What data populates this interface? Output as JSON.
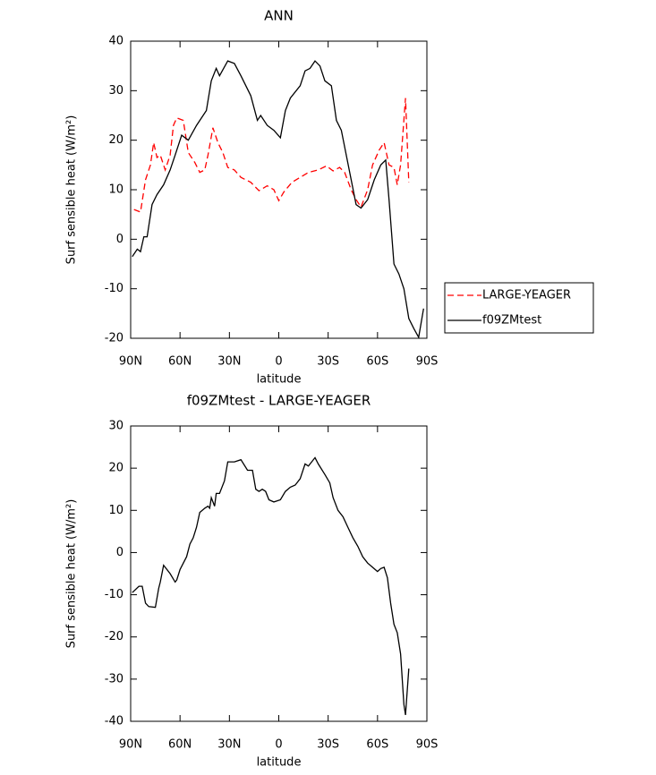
{
  "chart_data": [
    {
      "type": "line",
      "title": "ANN",
      "xlabel": "latitude",
      "ylabel": "Surf sensible heat (W/m²)",
      "xlim": [
        90,
        -90
      ],
      "ylim": [
        -20,
        40
      ],
      "xticks": [
        {
          "value": 90,
          "label": "90N"
        },
        {
          "value": 60,
          "label": "60N"
        },
        {
          "value": 30,
          "label": "30N"
        },
        0,
        {
          "value": -30,
          "label": "30S"
        },
        {
          "value": -60,
          "label": "60S"
        },
        {
          "value": -90,
          "label": "90S"
        }
      ],
      "yticks": [
        -20,
        -10,
        0,
        10,
        20,
        30,
        40
      ],
      "legend": "right",
      "series": [
        {
          "name": "LARGE-YEAGER",
          "color": "#ff0000",
          "linestyle": "dashed",
          "x": [
            88,
            84,
            81,
            78,
            76,
            74,
            72,
            69,
            66,
            64,
            62,
            58,
            55,
            51,
            48,
            45,
            43,
            40,
            37,
            34,
            31,
            27,
            23,
            17,
            12,
            7,
            3,
            0,
            -3,
            -8,
            -13,
            -18,
            -24,
            -29,
            -33,
            -37,
            -40,
            -44,
            -47,
            -50,
            -54,
            -57,
            -61,
            -64,
            -67,
            -70,
            -72,
            -74,
            -77,
            -79
          ],
          "values": [
            6,
            5.5,
            12,
            15,
            19.5,
            16.5,
            17,
            14,
            17,
            23,
            24.5,
            24,
            17.5,
            15.5,
            13.5,
            14,
            17,
            22.5,
            19.5,
            17.5,
            14.5,
            14,
            12.5,
            11.5,
            9.8,
            10.8,
            10,
            7.8,
            9.5,
            11.5,
            12.5,
            13.5,
            14,
            14.8,
            13.8,
            14.5,
            13.5,
            10,
            8,
            6.5,
            10,
            15,
            18,
            19.5,
            15,
            14.5,
            11,
            15,
            28.5,
            11.5
          ]
        },
        {
          "name": "f09ZMtest",
          "color": "#000000",
          "linestyle": "solid",
          "x": [
            89,
            86,
            84,
            82,
            80,
            77,
            74,
            70,
            66,
            63,
            59,
            55,
            50,
            44,
            41,
            38,
            36,
            31,
            27,
            23,
            17,
            13,
            11,
            7,
            3,
            -1,
            -4,
            -7,
            -13,
            -16,
            -19,
            -22,
            -25,
            -28,
            -32,
            -35,
            -38,
            -44,
            -47,
            -50,
            -54,
            -58,
            -62,
            -65,
            -67,
            -70,
            -73,
            -76,
            -79,
            -82,
            -85,
            -88
          ],
          "values": [
            -3.5,
            -2,
            -2.5,
            0.5,
            0.5,
            7,
            9,
            11,
            14,
            17,
            21,
            20,
            23,
            26,
            32,
            34.5,
            33,
            36,
            35.5,
            33,
            29,
            24,
            25,
            23,
            22,
            20.5,
            26,
            28.5,
            31,
            34,
            34.5,
            36,
            35,
            32,
            31,
            24,
            22,
            12,
            7,
            6.3,
            8,
            12,
            15,
            16,
            8,
            -5,
            -7,
            -10,
            -16,
            -18,
            -19.8,
            -14
          ]
        }
      ]
    },
    {
      "type": "line",
      "title": "f09ZMtest - LARGE-YEAGER",
      "xlabel": "latitude",
      "ylabel": "Surf sensible heat (W/m²)",
      "xlim": [
        90,
        -90
      ],
      "ylim": [
        -40,
        30
      ],
      "xticks": [
        {
          "value": 90,
          "label": "90N"
        },
        {
          "value": 60,
          "label": "60N"
        },
        {
          "value": 30,
          "label": "30N"
        },
        0,
        {
          "value": -30,
          "label": "30S"
        },
        {
          "value": -60,
          "label": "60S"
        },
        {
          "value": -90,
          "label": "90S"
        }
      ],
      "yticks": [
        -40,
        -30,
        -20,
        -10,
        0,
        10,
        20,
        30
      ],
      "series": [
        {
          "color": "#000000",
          "linestyle": "solid",
          "x": [
            89,
            85,
            83,
            81,
            79,
            75,
            73,
            72,
            70,
            66,
            63,
            62,
            60,
            56,
            54,
            52,
            50,
            48,
            45,
            43,
            42,
            41,
            39,
            38,
            36,
            33,
            31,
            27,
            23,
            19,
            16,
            14,
            12,
            10,
            8,
            6,
            3,
            -1,
            -4,
            -7,
            -10,
            -13,
            -16,
            -18,
            -22,
            -24,
            -28,
            -31,
            -33,
            -36,
            -39,
            -42,
            -45,
            -48,
            -51,
            -54,
            -57,
            -60,
            -62,
            -64,
            -66,
            -68,
            -70,
            -72,
            -74,
            -76,
            -77,
            -79
          ],
          "values": [
            -9.5,
            -8,
            -8,
            -12,
            -12.8,
            -13,
            -8.5,
            -7,
            -3,
            -5,
            -7,
            -6.5,
            -4,
            -1,
            2,
            3.5,
            6,
            9.5,
            10.5,
            11,
            10.5,
            13,
            11,
            14,
            14,
            17,
            21.5,
            21.5,
            22,
            19.5,
            19.5,
            15,
            14.5,
            15,
            14.5,
            12.5,
            12,
            12.5,
            14.5,
            15.5,
            16,
            17.5,
            21,
            20.5,
            22.5,
            21,
            18.5,
            16.5,
            13,
            10,
            8.5,
            6,
            3.5,
            1.5,
            -1,
            -2.5,
            -3.5,
            -4.5,
            -3.8,
            -3.5,
            -6,
            -12,
            -17,
            -19,
            -24,
            -36,
            -38.5,
            -27.5
          ]
        }
      ]
    }
  ]
}
